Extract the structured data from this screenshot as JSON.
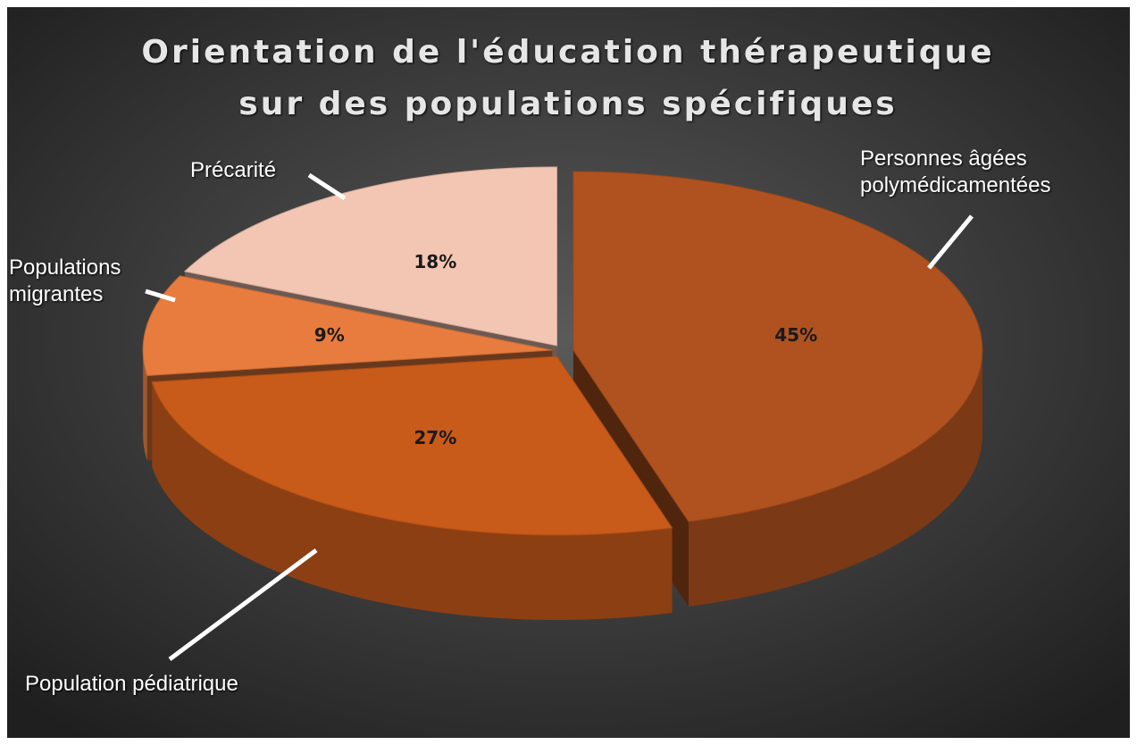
{
  "chart_data": {
    "type": "pie3d",
    "title": "Orientation de l'éducation thérapeutique sur des populations spécifiques",
    "categories": [
      "Personnes âgées polymédicamentées",
      "Population pédiatrique",
      "Populations migrantes",
      "Précarité"
    ],
    "values": [
      45,
      27,
      9,
      18
    ],
    "value_labels": [
      "45%",
      "27%",
      "9%",
      "18%"
    ],
    "colors": [
      "#b0521f",
      "#c85a1a",
      "#e87c3e",
      "#f3c6b3"
    ]
  }
}
